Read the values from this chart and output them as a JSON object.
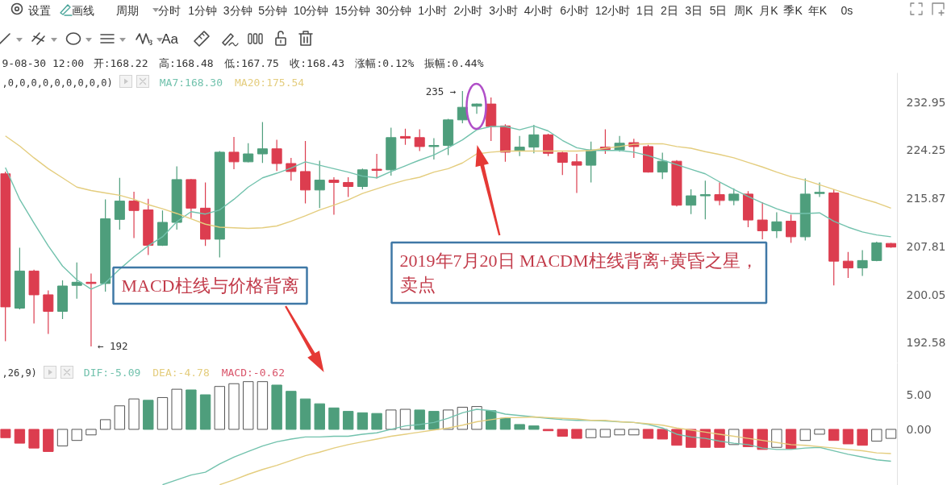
{
  "chart_data": [
    {
      "type": "candlestick",
      "categories": [
        null,
        null,
        null,
        null,
        null,
        null,
        null,
        null,
        null,
        null,
        null,
        null,
        null,
        null,
        null,
        null,
        null,
        null,
        null,
        null,
        null,
        null,
        null,
        null,
        null,
        null,
        null,
        null,
        null,
        null,
        null,
        null,
        null,
        null,
        null,
        null,
        null,
        null,
        null,
        null,
        null,
        null,
        null,
        null,
        null,
        null,
        null,
        null,
        null,
        null,
        null,
        null,
        null,
        null,
        null,
        null,
        null,
        null,
        null,
        null,
        null,
        null,
        null
      ],
      "ohlc": [
        [
          220.1,
          220.5,
          192.8,
          198.1
        ],
        [
          197.9,
          207.6,
          197.7,
          203.8
        ],
        [
          203.8,
          204.0,
          195.5,
          200.0
        ],
        [
          200.0,
          200.7,
          193.9,
          197.4
        ],
        [
          197.4,
          202.3,
          196.2,
          201.4
        ],
        [
          201.5,
          205.2,
          199.4,
          202.0
        ],
        [
          202.0,
          203.4,
          192.0,
          201.8
        ],
        [
          201.8,
          215.7,
          200.5,
          212.4
        ],
        [
          212.3,
          219.4,
          210.6,
          215.4
        ],
        [
          215.4,
          217.0,
          209.2,
          213.8
        ],
        [
          213.9,
          215.8,
          206.4,
          208.0
        ],
        [
          208.0,
          213.8,
          207.9,
          211.8
        ],
        [
          211.8,
          221.4,
          210.6,
          219.1
        ],
        [
          219.1,
          219.2,
          212.5,
          214.2
        ],
        [
          214.2,
          218.6,
          207.9,
          209.0
        ],
        [
          209.0,
          224.1,
          206.0,
          223.9
        ],
        [
          223.9,
          226.6,
          220.9,
          222.2
        ],
        [
          222.2,
          225.5,
          222.1,
          223.6
        ],
        [
          223.6,
          229.3,
          222.0,
          224.5
        ],
        [
          224.5,
          226.1,
          220.6,
          221.9
        ],
        [
          221.9,
          222.9,
          218.9,
          220.5
        ],
        [
          220.5,
          225.9,
          215.0,
          217.3
        ],
        [
          217.3,
          222.4,
          214.2,
          219.0
        ],
        [
          219.0,
          219.5,
          213.1,
          218.6
        ],
        [
          218.6,
          219.5,
          216.1,
          217.9
        ],
        [
          217.9,
          221.0,
          217.4,
          220.8
        ],
        [
          220.9,
          223.6,
          219.3,
          220.7
        ],
        [
          220.8,
          228.3,
          219.8,
          226.5
        ],
        [
          226.7,
          228.1,
          225.2,
          226.4
        ],
        [
          226.5,
          228.0,
          224.1,
          224.9
        ],
        [
          224.9,
          226.4,
          222.6,
          225.1
        ],
        [
          225.1,
          229.9,
          223.4,
          229.7
        ],
        [
          229.7,
          235.0,
          229.1,
          232.0
        ],
        [
          232.2,
          232.7,
          230.8,
          232.6
        ],
        [
          232.6,
          233.8,
          225.9,
          228.5
        ],
        [
          228.6,
          228.9,
          222.2,
          223.9
        ],
        [
          224.1,
          226.8,
          223.2,
          224.8
        ],
        [
          224.8,
          228.8,
          223.7,
          227.0
        ],
        [
          227.0,
          227.2,
          223.2,
          223.7
        ],
        [
          223.8,
          224.0,
          219.9,
          222.1
        ],
        [
          222.2,
          223.6,
          216.8,
          221.6
        ],
        [
          221.6,
          225.8,
          218.6,
          224.3
        ],
        [
          224.8,
          228.0,
          223.6,
          224.4
        ],
        [
          224.3,
          226.8,
          224.0,
          225.5
        ],
        [
          225.6,
          226.3,
          222.9,
          224.9
        ],
        [
          224.9,
          225.2,
          220.3,
          220.4
        ],
        [
          220.4,
          223.8,
          219.2,
          222.3
        ],
        [
          222.3,
          222.5,
          214.5,
          214.7
        ],
        [
          214.7,
          217.4,
          213.2,
          216.3
        ],
        [
          216.3,
          218.9,
          212.3,
          216.5
        ],
        [
          216.5,
          218.6,
          214.7,
          215.5
        ],
        [
          215.5,
          217.6,
          214.7,
          216.6
        ],
        [
          216.6,
          217.1,
          211.0,
          212.2
        ],
        [
          212.2,
          215.2,
          209.0,
          210.4
        ],
        [
          210.4,
          213.5,
          209.2,
          211.9
        ],
        [
          212.0,
          213.1,
          208.4,
          209.4
        ],
        [
          209.4,
          219.3,
          208.8,
          216.6
        ],
        [
          216.7,
          218.6,
          216.1,
          216.9
        ],
        [
          216.8,
          217.4,
          201.5,
          205.4
        ],
        [
          205.4,
          206.9,
          202.7,
          204.3
        ],
        [
          204.3,
          207.2,
          203.0,
          205.5
        ],
        [
          205.5,
          208.6,
          205.4,
          208.4
        ],
        [
          208.3,
          208.4,
          207.6,
          207.7
        ]
      ],
      "colors": [
        "#dc3d4f",
        "#4e9e7c",
        "#dc3d4f",
        "#dc3d4f",
        "#4e9e7c",
        "#4e9e7c",
        "#dc3d4f",
        "#4e9e7c",
        "#4e9e7c",
        "#dc3d4f",
        "#dc3d4f",
        "#4e9e7c",
        "#4e9e7c",
        "#dc3d4f",
        "#dc3d4f",
        "#4e9e7c",
        "#dc3d4f",
        "#4e9e7c",
        "#4e9e7c",
        "#dc3d4f",
        "#dc3d4f",
        "#dc3d4f",
        "#4e9e7c",
        "#dc3d4f",
        "#dc3d4f",
        "#4e9e7c",
        "#dc3d4f",
        "#4e9e7c",
        "#dc3d4f",
        "#dc3d4f",
        "#4e9e7c",
        "#4e9e7c",
        "#4e9e7c",
        "#4e9e7c",
        "#dc3d4f",
        "#dc3d4f",
        "#4e9e7c",
        "#4e9e7c",
        "#dc3d4f",
        "#dc3d4f",
        "#dc3d4f",
        "#4e9e7c",
        "#dc3d4f",
        "#4e9e7c",
        "#dc3d4f",
        "#dc3d4f",
        "#4e9e7c",
        "#dc3d4f",
        "#4e9e7c",
        "#4e9e7c",
        "#dc3d4f",
        "#4e9e7c",
        "#dc3d4f",
        "#dc3d4f",
        "#4e9e7c",
        "#dc3d4f",
        "#4e9e7c",
        "#4e9e7c",
        "#dc3d4f",
        "#dc3d4f",
        "#4e9e7c",
        "#4e9e7c",
        "#dc3d4f"
      ],
      "series": [
        {
          "name": "MA7:168.30",
          "type": "line",
          "color": "#72c2ad",
          "values": [
            221.2,
            215.7,
            211.7,
            207.9,
            204.6,
            202.4,
            200.9,
            201.9,
            204.1,
            206.1,
            207.9,
            209.4,
            211.9,
            213.6,
            213.2,
            213.9,
            215.7,
            217.8,
            219.4,
            220.2,
            221.1,
            222.2,
            221.6,
            221.0,
            220.4,
            219.7,
            219.4,
            220.5,
            221.5,
            222.5,
            223.4,
            224.7,
            226.1,
            227.9,
            228.5,
            228.5,
            227.9,
            228.6,
            227.7,
            226.0,
            224.7,
            224.2,
            224.2,
            224.2,
            223.9,
            223.3,
            222.5,
            221.7,
            220.9,
            220.1,
            218.7,
            217.4,
            216.2,
            215.1,
            214.1,
            213.3,
            213.3,
            213.4,
            212.0,
            211.0,
            210.2,
            209.7,
            209.4
          ]
        },
        {
          "name": "MA20:175.54",
          "type": "line",
          "color": "#e4cd7e",
          "values": [
            226.8,
            225.0,
            222.9,
            221.0,
            219.4,
            217.8,
            217.2,
            216.8,
            216.4,
            215.7,
            214.8,
            214.1,
            213.3,
            212.4,
            211.5,
            211.0,
            210.9,
            210.8,
            210.9,
            211.2,
            212.0,
            212.9,
            213.9,
            214.7,
            215.6,
            216.7,
            217.5,
            218.3,
            219.0,
            219.5,
            220.4,
            221.0,
            222.0,
            223.6,
            223.9,
            224.1,
            224.1,
            224.1,
            224.1,
            224.1,
            224.1,
            224.2,
            224.6,
            224.9,
            225.3,
            225.4,
            225.4,
            224.9,
            224.6,
            224.0,
            223.5,
            222.9,
            222.1,
            221.3,
            220.4,
            219.6,
            219.0,
            218.2,
            217.4,
            216.6,
            215.8,
            215.1,
            214.2
          ]
        }
      ],
      "ylim": [
        189.5,
        238.4
      ],
      "yticks": [
        232.95,
        224.25,
        215.87,
        207.81,
        200.05,
        192.58
      ],
      "log": true,
      "tick_labels": "y",
      "legend": "top left",
      "annotations": [
        "设置",
        "画线",
        "周期",
        "分时",
        "1分钟",
        "3分钟",
        "5分钟",
        "10分钟",
        "15分钟",
        "30分钟",
        "1小时",
        "2小时",
        "3小时",
        "4小时",
        "6小时",
        "12小时",
        "1日",
        "2日",
        "3日",
        "5日",
        "周K",
        "月K",
        "季K",
        "年K",
        "0s",
        "Aa",
        "9-08-30 12:00",
        "开:168.22",
        "高:168.48",
        "低:167.75",
        "收:168.43",
        "涨幅:0.12%",
        "振幅:0.44%",
        ",0,0,0,0,0,0,0,0,0)",
        "235 →",
        "← 192",
        "MACD柱线与价格背离",
        "2019年7月20日 MACDM柱线背离+黄昏之星，卖点"
      ]
    },
    {
      "type": "bar",
      "categories": [
        null,
        null,
        null,
        null,
        null,
        null,
        null,
        null,
        null,
        null,
        null,
        null,
        null,
        null,
        null,
        null,
        null,
        null,
        null,
        null,
        null,
        null,
        null,
        null,
        null,
        null,
        null,
        null,
        null,
        null,
        null,
        null,
        null,
        null,
        null,
        null,
        null,
        null,
        null,
        null,
        null,
        null,
        null,
        null,
        null,
        null,
        null,
        null,
        null,
        null,
        null,
        null,
        null,
        null,
        null,
        null,
        null,
        null,
        null,
        null,
        null,
        null,
        null
      ],
      "series": [
        {
          "name": "DIF:-5.09",
          "type": "line",
          "color": "#72c2ad",
          "values": [
            null,
            null,
            null,
            null,
            null,
            null,
            null,
            null,
            null,
            null,
            null,
            -8.0,
            -7.3,
            -6.6,
            -6.2,
            -5.0,
            -4.0,
            -3.2,
            -2.4,
            -1.8,
            -1.4,
            -1.1,
            -1.1,
            -1.0,
            -1.0,
            -0.7,
            -0.5,
            0.0,
            0.5,
            0.7,
            1.0,
            1.6,
            2.4,
            2.9,
            2.7,
            2.2,
            2.0,
            1.8,
            1.6,
            1.4,
            1.3,
            1.3,
            1.2,
            1.1,
            1.0,
            0.7,
            0.2,
            -0.7,
            -1.1,
            -1.3,
            -1.7,
            -2.0,
            -2.2,
            -2.7,
            -2.9,
            -2.9,
            -2.7,
            -2.6,
            -3.1,
            -3.6,
            -4.0,
            -4.4,
            -4.6
          ]
        },
        {
          "name": "DEA:-4.78",
          "type": "line",
          "color": "#e4cd7e",
          "values": [
            null,
            null,
            null,
            null,
            null,
            null,
            null,
            null,
            null,
            null,
            null,
            null,
            null,
            null,
            null,
            -8.0,
            -7.3,
            -6.5,
            -5.8,
            -5.2,
            -4.5,
            -3.8,
            -3.3,
            -2.7,
            -2.2,
            -1.8,
            -1.4,
            -1.0,
            -0.7,
            -0.4,
            -0.1,
            0.2,
            0.6,
            1.1,
            1.4,
            1.7,
            1.7,
            1.8,
            1.7,
            1.6,
            1.5,
            1.3,
            1.3,
            1.1,
            1.0,
            0.8,
            0.6,
            0.2,
            -0.1,
            -0.4,
            -0.7,
            -1.0,
            -1.3,
            -1.6,
            -1.9,
            -2.2,
            -2.3,
            -2.5,
            -2.7,
            -2.9,
            -3.1,
            -3.4,
            -3.5
          ]
        },
        {
          "name": "MACD:-0.62",
          "color": "#d9546a",
          "colors": [
            "#dc3d4f",
            "#dc3d4f",
            "#dc3d4f",
            "#dc3d4f",
            "#ffffff",
            "#ffffff",
            "#ffffff",
            "#ffffff",
            "#ffffff",
            "#ffffff",
            "#4e9e7c",
            "#ffffff",
            "#ffffff",
            "#4e9e7c",
            "#4e9e7c",
            "#ffffff",
            "#ffffff",
            "#ffffff",
            "#ffffff",
            "#4e9e7c",
            "#4e9e7c",
            "#4e9e7c",
            "#4e9e7c",
            "#4e9e7c",
            "#4e9e7c",
            "#4e9e7c",
            "#4e9e7c",
            "#ffffff",
            "#ffffff",
            "#4e9e7c",
            "#4e9e7c",
            "#ffffff",
            "#ffffff",
            "#ffffff",
            "#4e9e7c",
            "#4e9e7c",
            "#4e9e7c",
            "#4e9e7c",
            "#dc3d4f",
            "#dc3d4f",
            "#dc3d4f",
            "#ffffff",
            "#ffffff",
            "#ffffff",
            "#ffffff",
            "#dc3d4f",
            "#dc3d4f",
            "#dc3d4f",
            "#dc3d4f",
            "#dc3d4f",
            "#dc3d4f",
            "#ffffff",
            "#dc3d4f",
            "#dc3d4f",
            "#ffffff",
            "#dc3d4f",
            "#ffffff",
            "#ffffff",
            "#dc3d4f",
            "#dc3d4f",
            "#dc3d4f",
            "#ffffff",
            "#ffffff"
          ],
          "values": [
            -1.2,
            -2.0,
            -2.7,
            -3.2,
            -2.4,
            -1.6,
            -0.8,
            1.4,
            3.4,
            4.4,
            4.2,
            4.6,
            5.8,
            5.7,
            5.0,
            6.2,
            6.6,
            6.9,
            6.9,
            6.4,
            5.5,
            4.4,
            3.7,
            3.1,
            2.6,
            2.4,
            2.3,
            2.8,
            2.9,
            2.8,
            2.6,
            2.8,
            3.2,
            3.3,
            2.7,
            1.6,
            0.7,
            0.5,
            -0.2,
            -1.0,
            -1.3,
            -1.2,
            -1.1,
            -0.8,
            -0.8,
            -1.3,
            -1.4,
            -2.3,
            -2.6,
            -2.6,
            -2.6,
            -2.2,
            -2.5,
            -2.9,
            -2.6,
            -2.8,
            -1.6,
            -0.7,
            -1.6,
            -2.1,
            -2.3,
            -1.7,
            -1.3
          ]
        }
      ],
      "ylim": [
        -8.1,
        9.6
      ],
      "yticks": [
        {
          "value": 5,
          "label": "5.00"
        },
        {
          "value": 0,
          "label": "0.00"
        }
      ],
      "tick_labels": "y",
      "legend": "top left",
      "annotations": [
        ",26,9)"
      ]
    }
  ]
}
